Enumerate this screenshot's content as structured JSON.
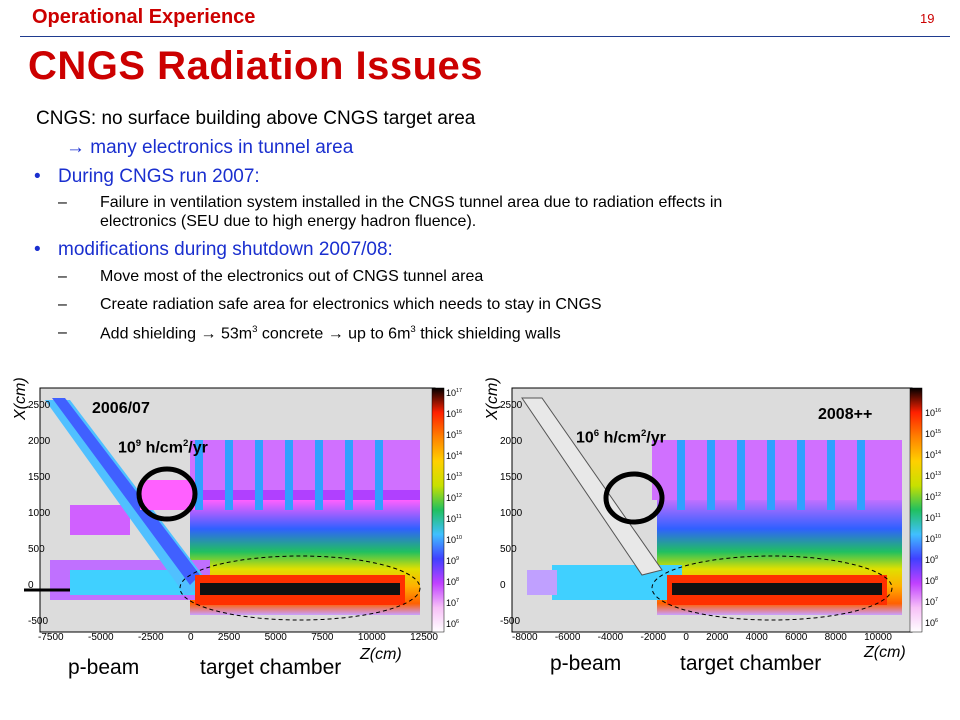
{
  "header": {
    "section": "Operational Experience",
    "page_number": "19",
    "title": "CNGS Radiation Issues"
  },
  "content": {
    "intro": "CNGS: no surface building above CNGS target area",
    "arrow_line": " many electronics in tunnel area",
    "bullet1": "During CNGS run 2007:",
    "bullet1_sub1_line1": "Failure in ventilation system installed in the CNGS tunnel area due to radiation effects in",
    "bullet1_sub1_line2": "electronics (SEU due to high energy hadron fluence).",
    "bullet2": "modifications during shutdown 2007/08:",
    "bullet2_sub1": "Move most of the electronics out of CNGS tunnel area",
    "bullet2_sub2": "Create radiation safe area for electronics which needs to stay in CNGS",
    "bullet2_sub3_a": "Add shielding ",
    "bullet2_sub3_b": " 53m",
    "bullet2_sub3_c": "3",
    "bullet2_sub3_d": " concrete ",
    "bullet2_sub3_e": " up to 6m",
    "bullet2_sub3_f": "3",
    "bullet2_sub3_g": " thick shielding walls"
  },
  "left_plot": {
    "year": "2006/07",
    "flux_base": "10",
    "flux_exp": "9",
    "flux_unit_a": " h/cm",
    "flux_unit_sq": "2",
    "flux_unit_b": "/yr",
    "y_axis_label": "X(cm)",
    "x_axis_label": "Z(cm)",
    "y_ticks": [
      "2500",
      "2000",
      "1500",
      "1000",
      "500",
      "0",
      "-500"
    ],
    "x_ticks": [
      "-7500",
      "-5000",
      "-2500",
      "0",
      "2500",
      "5000",
      "7500",
      "10000",
      "12500"
    ],
    "scale_ticks": [
      "17",
      "16",
      "15",
      "14",
      "13",
      "12",
      "11",
      "10",
      "9",
      "8",
      "7",
      "6"
    ],
    "scale_base": "10",
    "beam_label": "p-beam",
    "chamber_label": "target chamber"
  },
  "right_plot": {
    "year": "2008++",
    "flux_base": "10",
    "flux_exp": "6",
    "flux_unit_a": " h/cm",
    "flux_unit_sq": "2",
    "flux_unit_b": "/yr",
    "y_axis_label": "X(cm)",
    "x_axis_label": "Z(cm)",
    "y_ticks": [
      "2500",
      "2000",
      "1500",
      "1000",
      "500",
      "0",
      "-500"
    ],
    "x_ticks": [
      "-8000",
      "-6000",
      "-4000",
      "-2000",
      "0",
      "2000",
      "4000",
      "6000",
      "8000",
      "10000"
    ],
    "scale_ticks": [
      "16",
      "15",
      "14",
      "13",
      "12",
      "11",
      "10",
      "9",
      "8",
      "7",
      "6"
    ],
    "scale_base": "10",
    "beam_label": "p-beam",
    "chamber_label": "target chamber"
  }
}
